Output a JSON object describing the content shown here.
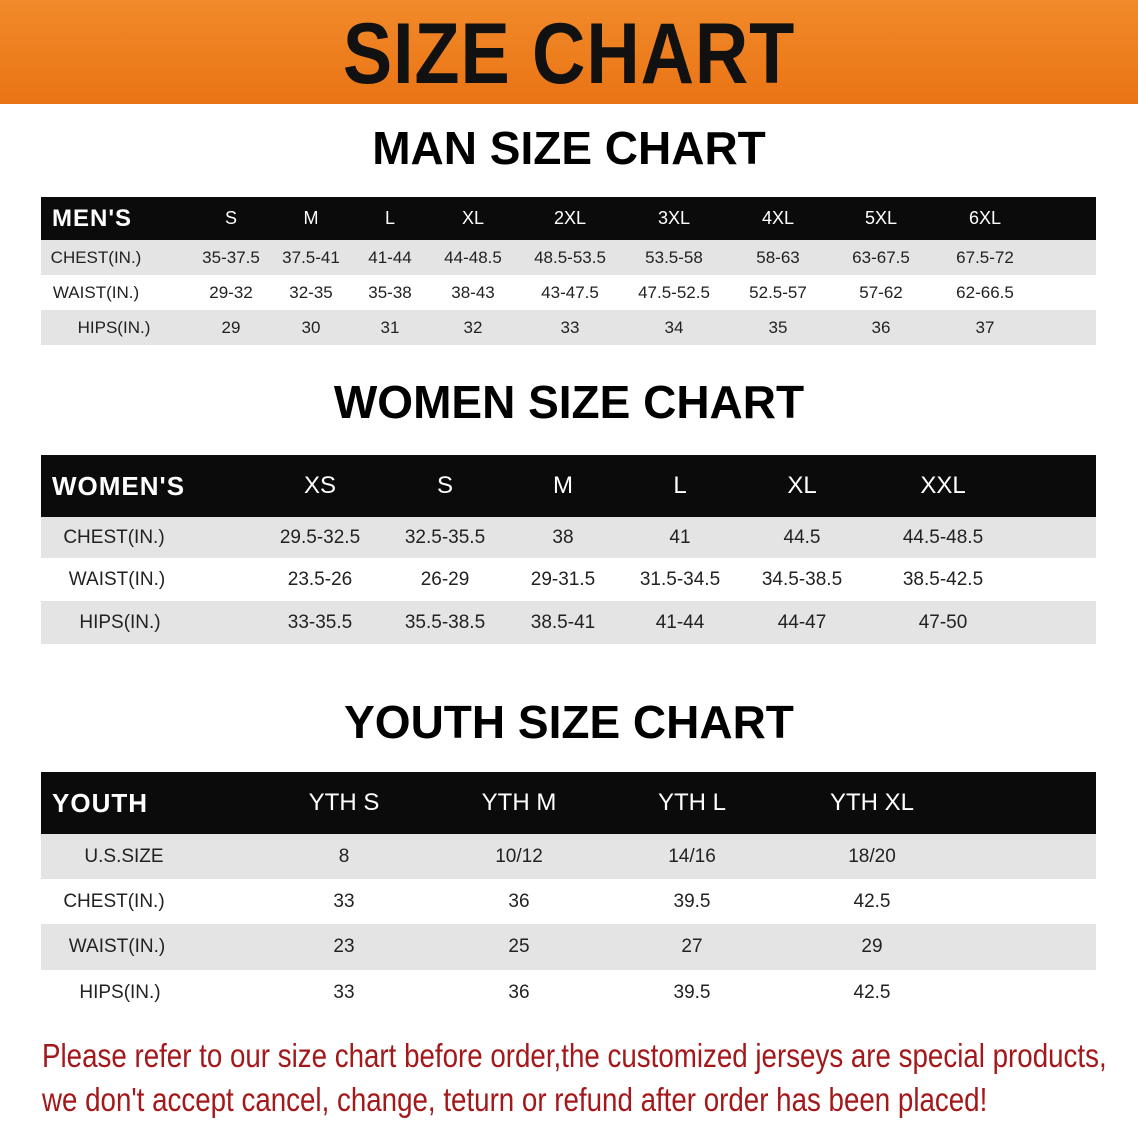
{
  "title": "SIZE CHART",
  "colors": {
    "banner": "#ee7d1d",
    "header_row": "#0b0b0b",
    "stripe": "#e4e4e4",
    "notice": "#a3191b"
  },
  "men": {
    "title": "MAN SIZE CHART",
    "header": [
      "MEN'S",
      "S",
      "M",
      "L",
      "XL",
      "2XL",
      "3XL",
      "4XL",
      "5XL",
      "6XL"
    ],
    "rows": [
      [
        "CHEST(IN.)",
        "35-37.5",
        "37.5-41",
        "41-44",
        "44-48.5",
        "48.5-53.5",
        "53.5-58",
        "58-63",
        "63-67.5",
        "67.5-72"
      ],
      [
        "WAIST(IN.)",
        "29-32",
        "32-35",
        "35-38",
        "38-43",
        "43-47.5",
        "47.5-52.5",
        "52.5-57",
        "57-62",
        "62-66.5"
      ],
      [
        "HIPS(IN.)",
        "29",
        "30",
        "31",
        "32",
        "33",
        "34",
        "35",
        "36",
        "37"
      ]
    ]
  },
  "women": {
    "title": "WOMEN SIZE CHART",
    "header": [
      "WOMEN'S",
      "XS",
      "S",
      "M",
      "L",
      "XL",
      "XXL"
    ],
    "rows": [
      [
        "CHEST(IN.)",
        "29.5-32.5",
        "32.5-35.5",
        "38",
        "41",
        "44.5",
        "44.5-48.5"
      ],
      [
        "WAIST(IN.)",
        "23.5-26",
        "26-29",
        "29-31.5",
        "31.5-34.5",
        "34.5-38.5",
        "38.5-42.5"
      ],
      [
        "HIPS(IN.)",
        "33-35.5",
        "35.5-38.5",
        "38.5-41",
        "41-44",
        "44-47",
        "47-50"
      ]
    ]
  },
  "youth": {
    "title": "YOUTH SIZE CHART",
    "header": [
      "YOUTH",
      "YTH S",
      "YTH M",
      "YTH L",
      "YTH XL"
    ],
    "rows": [
      [
        "U.S.SIZE",
        "8",
        "10/12",
        "14/16",
        "18/20"
      ],
      [
        "CHEST(IN.)",
        "33",
        "36",
        "39.5",
        "42.5"
      ],
      [
        "WAIST(IN.)",
        "23",
        "25",
        "27",
        "29"
      ],
      [
        "HIPS(IN.)",
        "33",
        "36",
        "39.5",
        "42.5"
      ]
    ]
  },
  "notice": {
    "line1": "Please refer to our size chart before order,the customized jerseys are special products,",
    "line2": "we don't accept cancel, change, teturn or refund after order has been placed!"
  }
}
